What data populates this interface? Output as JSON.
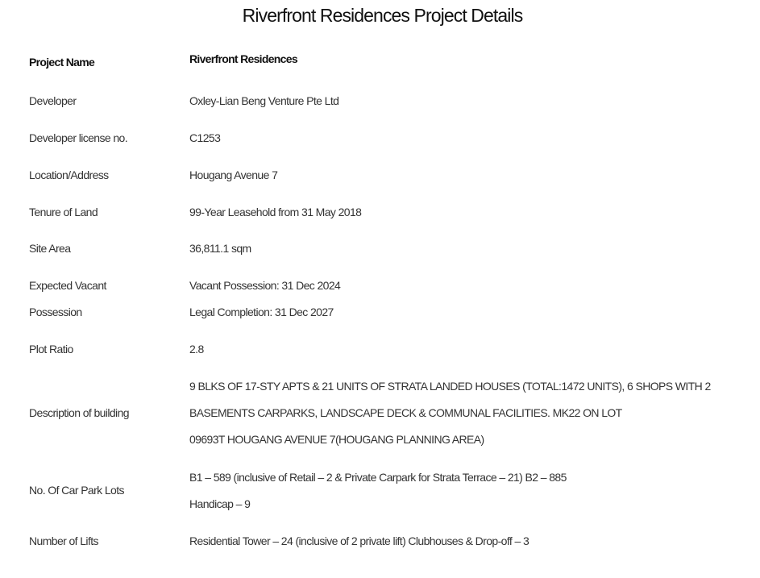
{
  "title": "Riverfront Residences Project Details",
  "rows": [
    {
      "label": "Project Name",
      "value": [
        "Riverfront Residences"
      ]
    },
    {
      "label": "Developer",
      "value": [
        "Oxley-Lian Beng Venture Pte Ltd"
      ]
    },
    {
      "label": "Developer license no.",
      "value": [
        "C1253"
      ]
    },
    {
      "label": "Location/Address",
      "value": [
        "Hougang Avenue 7"
      ]
    },
    {
      "label": "Tenure of Land",
      "value": [
        "99-Year Leasehold from 31 May 2018"
      ]
    },
    {
      "label": "Site Area",
      "value": [
        "36,811.1 sqm"
      ]
    },
    {
      "label": [
        "Expected Vacant",
        "Possession"
      ],
      "value": [
        "Vacant Possession: 31 Dec 2024",
        "Legal Completion: 31 Dec 2027"
      ]
    },
    {
      "label": "Plot Ratio",
      "value": [
        "2.8"
      ]
    },
    {
      "label": "Description of building",
      "value": [
        "9 BLKS OF 17-STY APTS & 21 UNITS OF STRATA LANDED HOUSES (TOTAL:1472 UNITS), 6 SHOPS WITH 2",
        "BASEMENTS CARPARKS, LANDSCAPE DECK & COMMUNAL FACILITIES. MK22 ON LOT",
        "09693T HOUGANG AVENUE 7(HOUGANG PLANNING AREA)"
      ]
    },
    {
      "label": "No. Of Car Park Lots",
      "value": [
        "B1 – 589 (inclusive of Retail – 2 & Private Carpark for Strata Terrace – 21) B2 – 885",
        "Handicap – 9"
      ]
    },
    {
      "label": "Number of Lifts",
      "value": [
        "Residential Tower – 24 (inclusive of 2 private lift) Clubhouses & Drop-off – 3"
      ]
    }
  ]
}
